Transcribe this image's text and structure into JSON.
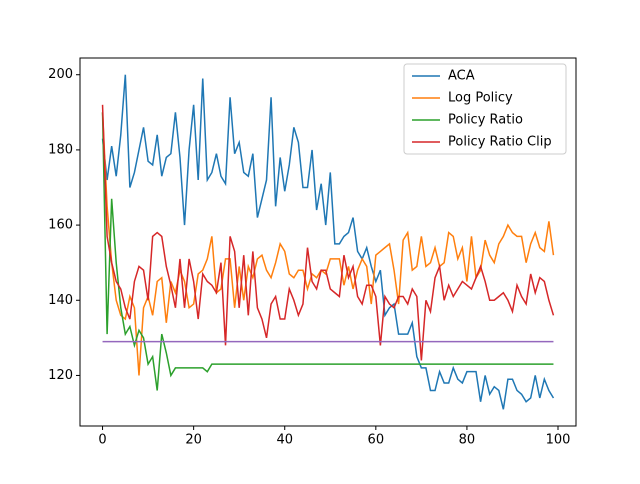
{
  "chart_data": {
    "type": "line",
    "x": [
      0,
      1,
      2,
      3,
      4,
      5,
      6,
      7,
      8,
      9,
      10,
      11,
      12,
      13,
      14,
      15,
      16,
      17,
      18,
      19,
      20,
      21,
      22,
      23,
      24,
      25,
      26,
      27,
      28,
      29,
      30,
      31,
      32,
      33,
      34,
      35,
      36,
      37,
      38,
      39,
      40,
      41,
      42,
      43,
      44,
      45,
      46,
      47,
      48,
      49,
      50,
      51,
      52,
      53,
      54,
      55,
      56,
      57,
      58,
      59,
      60,
      61,
      62,
      63,
      64,
      65,
      66,
      67,
      68,
      69,
      70,
      71,
      72,
      73,
      74,
      75,
      76,
      77,
      78,
      79,
      80,
      81,
      82,
      83,
      84,
      85,
      86,
      87,
      88,
      89,
      90,
      91,
      92,
      93,
      94,
      95,
      96,
      97,
      98,
      99
    ],
    "series": [
      {
        "name": "ACA",
        "color": "#1f77b4",
        "values": [
          183,
          172,
          181,
          173,
          184,
          200,
          170,
          174,
          180,
          186,
          177,
          176,
          184,
          173,
          178,
          179,
          190,
          178,
          160,
          180,
          192,
          172,
          199,
          172,
          174,
          179,
          173,
          171,
          194,
          179,
          182,
          174,
          173,
          179,
          162,
          167,
          172,
          194,
          165,
          178,
          169,
          176,
          186,
          182,
          170,
          170,
          180,
          164,
          171,
          160,
          174,
          155,
          155,
          157,
          158,
          162,
          153,
          151,
          154,
          149,
          145,
          148,
          136,
          138,
          139,
          131,
          131,
          131,
          134,
          125,
          122,
          122,
          116,
          116,
          121,
          118,
          118,
          122,
          119,
          118,
          121,
          121,
          121,
          113,
          120,
          115,
          117,
          116,
          111,
          119,
          119,
          116,
          115,
          113,
          114,
          120,
          114,
          119,
          116,
          114
        ]
      },
      {
        "name": "Log Policy",
        "color": "#ff7f0e",
        "values": [
          190,
          165,
          150,
          140,
          136,
          135,
          141,
          138,
          120,
          138,
          141,
          136,
          145,
          146,
          134,
          145,
          142,
          148,
          145,
          138,
          139,
          147,
          148,
          151,
          157,
          142,
          143,
          151,
          151,
          138,
          149,
          140,
          149,
          146,
          151,
          152,
          148,
          146,
          150,
          155,
          153,
          147,
          146,
          148,
          148,
          143,
          147,
          146,
          148,
          147,
          151,
          151,
          151,
          144,
          149,
          143,
          148,
          151,
          149,
          139,
          152,
          153,
          154,
          155,
          148,
          139,
          156,
          158,
          148,
          149,
          157,
          149,
          150,
          154,
          149,
          150,
          158,
          157,
          151,
          154,
          145,
          157,
          146,
          148,
          156,
          152,
          150,
          155,
          157,
          160,
          158,
          157,
          157,
          150,
          155,
          158,
          154,
          153,
          161,
          152
        ]
      },
      {
        "name": "Policy Ratio",
        "color": "#2ca02c",
        "values": [
          190,
          131,
          167,
          150,
          138,
          131,
          133,
          128,
          132,
          130,
          123,
          125,
          116,
          131,
          126,
          120,
          122,
          122,
          122,
          122,
          122,
          122,
          122,
          121,
          123,
          123,
          123,
          123,
          123,
          123,
          123,
          123,
          123,
          123,
          123,
          123,
          123,
          123,
          123,
          123,
          123,
          123,
          123,
          123,
          123,
          123,
          123,
          123,
          123,
          123,
          123,
          123,
          123,
          123,
          123,
          123,
          123,
          123,
          123,
          123,
          123,
          123,
          123,
          123,
          123,
          123,
          123,
          123,
          123,
          123,
          123,
          123,
          123,
          123,
          123,
          123,
          123,
          123,
          123,
          123,
          123,
          123,
          123,
          123,
          123,
          123,
          123,
          123,
          123,
          123,
          123,
          123,
          123,
          123,
          123,
          123,
          123,
          123,
          123,
          123
        ]
      },
      {
        "name": "Policy Ratio Clip",
        "color": "#d62728",
        "values": [
          192,
          157,
          150,
          145,
          143,
          138,
          135,
          145,
          149,
          148,
          140,
          157,
          158,
          157,
          149,
          144,
          138,
          151,
          138,
          151,
          145,
          135,
          147,
          145,
          144,
          142,
          150,
          128,
          157,
          153,
          138,
          152,
          136,
          153,
          138,
          135,
          130,
          139,
          141,
          135,
          135,
          143,
          140,
          136,
          139,
          154,
          145,
          143,
          148,
          148,
          143,
          142,
          141,
          152,
          146,
          149,
          141,
          139,
          144,
          144,
          141,
          128,
          141,
          139,
          138,
          141,
          141,
          139,
          143,
          141,
          124,
          140,
          137,
          146,
          149,
          140,
          144,
          141,
          143,
          145,
          144,
          143,
          146,
          149,
          145,
          140,
          140,
          141,
          142,
          140,
          137,
          144,
          141,
          139,
          147,
          142,
          146,
          145,
          140,
          136
        ]
      },
      {
        "color": "#9467bd",
        "values": [
          129,
          129,
          129,
          129,
          129,
          129,
          129,
          129,
          129,
          129,
          129,
          129,
          129,
          129,
          129,
          129,
          129,
          129,
          129,
          129,
          129,
          129,
          129,
          129,
          129,
          129,
          129,
          129,
          129,
          129,
          129,
          129,
          129,
          129,
          129,
          129,
          129,
          129,
          129,
          129,
          129,
          129,
          129,
          129,
          129,
          129,
          129,
          129,
          129,
          129,
          129,
          129,
          129,
          129,
          129,
          129,
          129,
          129,
          129,
          129,
          129,
          129,
          129,
          129,
          129,
          129,
          129,
          129,
          129,
          129,
          129,
          129,
          129,
          129,
          129,
          129,
          129,
          129,
          129,
          129,
          129,
          129,
          129,
          129,
          129,
          129,
          129,
          129,
          129,
          129,
          129,
          129,
          129,
          129,
          129,
          129,
          129,
          129,
          129,
          129
        ]
      }
    ],
    "xlim": [
      -4.95,
      103.95
    ],
    "ylim": [
      106.55,
      204.45
    ],
    "xticks": [
      0,
      20,
      40,
      60,
      80,
      100
    ],
    "yticks": [
      120,
      140,
      160,
      180,
      200
    ],
    "legend": "upper right"
  }
}
